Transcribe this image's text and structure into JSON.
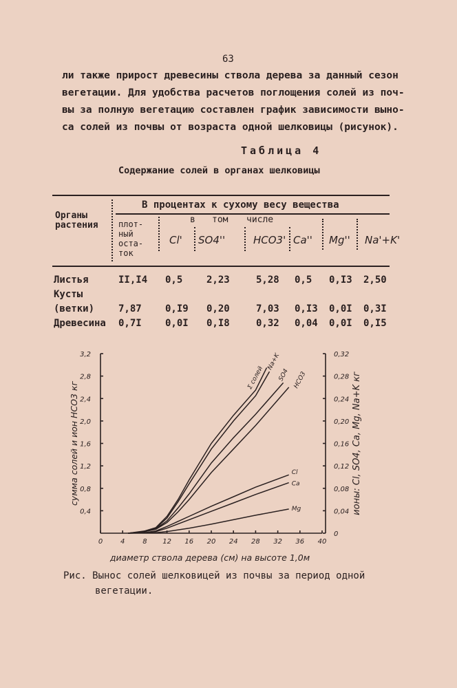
{
  "page_number": "63",
  "paragraph": [
    "ли также прирост древесины ствола дерева за данный сезон",
    "вегетации. Для удобства расчетов поглощения солей из поч-",
    "вы за полную вегетацию составлен график зависимости выно-",
    "са солей из почвы от возраста одной шелковицы (рисунок)."
  ],
  "table": {
    "caption": "Таблица 4",
    "title": "Содержание солей в органах шелковицы",
    "col_group": "В процентах к сухому весу вещества",
    "sub_group": [
      "в",
      "том",
      "числе"
    ],
    "row_header": [
      "Органы",
      "растения"
    ],
    "columns": [
      "плот-\nный\nоста-\nток",
      "Cl'",
      "SO4''",
      "HCO3'",
      "Ca''",
      "Mg''",
      "Na'+K'"
    ],
    "rows": [
      {
        "name": "Листья",
        "values": [
          "II,I4",
          "0,5",
          "2,23",
          "5,28",
          "0,5",
          "0,I3",
          "2,50"
        ]
      },
      {
        "name": "Кусты",
        "values": []
      },
      {
        "name": "(ветки)",
        "values": [
          "7,87",
          "0,I9",
          "0,20",
          "7,03",
          "0,I3",
          "0,0I",
          "0,3I"
        ]
      },
      {
        "name": "Древесина",
        "values": [
          "0,7I",
          "0,0I",
          "0,I8",
          "0,32",
          "0,04",
          "0,0I",
          "0,I5"
        ]
      }
    ]
  },
  "chart_data": {
    "type": "line",
    "xlabel": "диаметр ствола дерева (см) на высоте 1,0м",
    "ylabel": "сумма солей и ион HCO3 кг",
    "y2label": "ионы: Cl, SO4, Ca, Mg, Na+K кг",
    "xlim": [
      0,
      40
    ],
    "ylim": [
      0,
      3.2
    ],
    "y2lim": [
      0,
      0.32
    ],
    "xticks": [
      "0",
      "4",
      "8",
      "12",
      "16",
      "20",
      "24",
      "28",
      "32",
      "36",
      "40"
    ],
    "yticks": [
      "0,4",
      "0,8",
      "1,2",
      "1,6",
      "2,0",
      "2,4",
      "2,8",
      "3,2"
    ],
    "y2ticks": [
      "0",
      "0,04",
      "0,08",
      "0,12",
      "0,16",
      "0,20",
      "0,24",
      "0,28",
      "0,32"
    ],
    "series": [
      {
        "name": "Σ солей",
        "axis": "left",
        "x": [
          5,
          8,
          10,
          12,
          14,
          16,
          20,
          24,
          28,
          30
        ],
        "y": [
          0,
          0.04,
          0.1,
          0.3,
          0.6,
          0.95,
          1.6,
          2.1,
          2.55,
          2.95
        ]
      },
      {
        "name": "Na+K",
        "axis": "right",
        "x": [
          5,
          8,
          10,
          12,
          14,
          16,
          20,
          24,
          28,
          30.5
        ],
        "y": [
          0,
          0.003,
          0.009,
          0.027,
          0.056,
          0.088,
          0.15,
          0.2,
          0.245,
          0.288
        ]
      },
      {
        "name": "SO4",
        "axis": "right",
        "x": [
          5,
          8,
          10,
          12,
          14,
          16,
          20,
          24,
          28,
          33
        ],
        "y": [
          0,
          0.003,
          0.008,
          0.022,
          0.045,
          0.07,
          0.125,
          0.17,
          0.212,
          0.268
        ]
      },
      {
        "name": "HCO3",
        "axis": "left",
        "x": [
          5,
          8,
          10,
          12,
          14,
          16,
          20,
          24,
          28,
          34
        ],
        "y": [
          0,
          0.03,
          0.07,
          0.19,
          0.38,
          0.6,
          1.08,
          1.5,
          1.92,
          2.6
        ]
      },
      {
        "name": "Cl",
        "axis": "right",
        "x": [
          5,
          8,
          10,
          12,
          16,
          20,
          24,
          28,
          34
        ],
        "y": [
          0,
          0.001,
          0.004,
          0.012,
          0.03,
          0.048,
          0.065,
          0.082,
          0.104
        ]
      },
      {
        "name": "Ca",
        "axis": "right",
        "x": [
          5,
          8,
          10,
          12,
          16,
          20,
          24,
          28,
          34
        ],
        "y": [
          0,
          0.001,
          0.003,
          0.009,
          0.024,
          0.039,
          0.054,
          0.069,
          0.09
        ]
      },
      {
        "name": "Mg",
        "axis": "right",
        "x": [
          5,
          8,
          10,
          12,
          16,
          20,
          24,
          28,
          34
        ],
        "y": [
          0,
          0.0005,
          0.001,
          0.003,
          0.009,
          0.016,
          0.024,
          0.032,
          0.043
        ]
      }
    ]
  },
  "caption": [
    "Рис. Вынос солей шелковицей из почвы за период одной",
    "вегетации."
  ]
}
